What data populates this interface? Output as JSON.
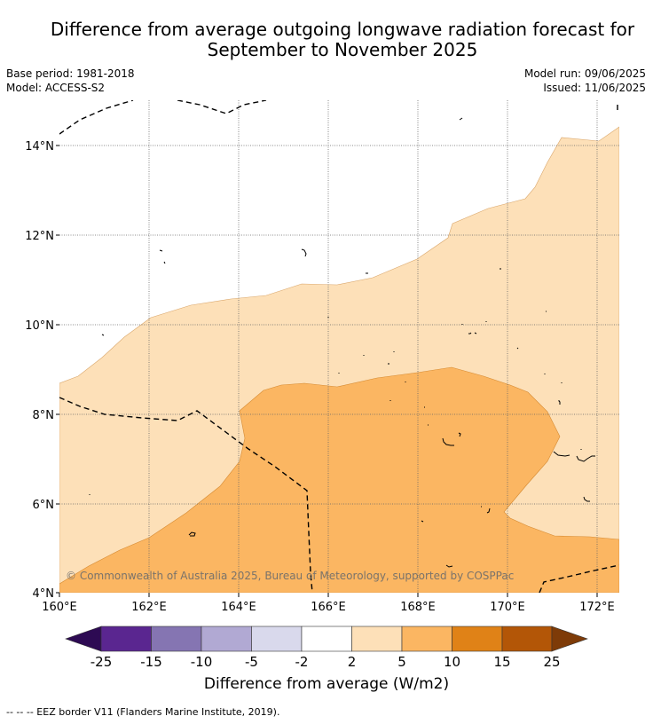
{
  "header": {
    "title_line1": "Difference from average outgoing longwave radiation forecast for",
    "title_line2": "September to November 2025",
    "base_period": "Base period: 1981-2018",
    "model": "Model: ACCESS-S2",
    "model_run": "Model run: 09/06/2025",
    "issued": "Issued: 11/06/2025"
  },
  "map": {
    "lat_labels": [
      "14°N",
      "12°N",
      "10°N",
      "8°N",
      "6°N",
      "4°N"
    ],
    "lat_values": [
      14,
      12,
      10,
      8,
      6,
      4
    ],
    "lon_labels": [
      "160°E",
      "162°E",
      "164°E",
      "166°E",
      "168°E",
      "170°E",
      "172°E"
    ],
    "lon_values": [
      160,
      162,
      164,
      166,
      168,
      170,
      172
    ],
    "extent": {
      "lon": [
        160,
        172.5
      ],
      "lat": [
        4,
        15.1
      ]
    },
    "copyright": "© Commonwealth of Australia 2025, Bureau of Meteorology, supported by COSPPac",
    "colors": {
      "band_2_5": "#fde0b8",
      "band_5_10": "#fbb662",
      "border": "#000000"
    }
  },
  "colorbar": {
    "ticks": [
      "-25",
      "-15",
      "-10",
      "-5",
      "-2",
      "2",
      "5",
      "10",
      "15",
      "25"
    ],
    "colors": [
      "#2d0a53",
      "#5a2690",
      "#8575b2",
      "#b1a9d3",
      "#d9d9ec",
      "#ffffff",
      "#fde0b8",
      "#fbb662",
      "#e08217",
      "#b35607",
      "#7e3b08"
    ],
    "label": "Difference from average (W/m2)"
  },
  "footnote": "--  --  -- EEZ border V11 (Flanders Marine Institute, 2019)."
}
